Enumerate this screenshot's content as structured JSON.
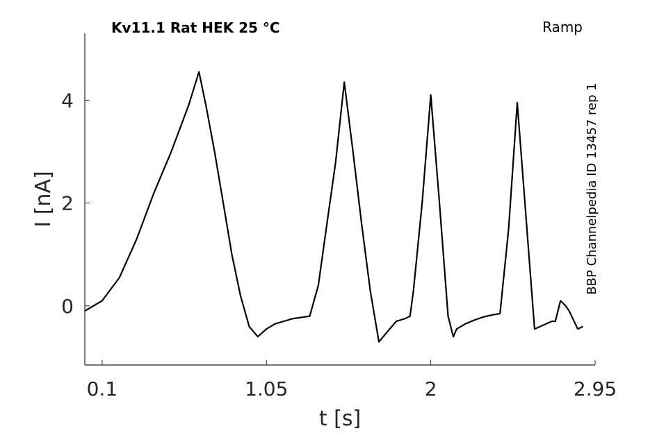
{
  "chart_data": {
    "type": "line",
    "title": "Kv11.1  Rat  HEK  25 °C",
    "protocol_label": "Ramp",
    "source_label": "BBP Channelpedia ID 13457 rep 1",
    "xlabel": "t [s]",
    "ylabel": "I [nA]",
    "xlim": [
      0.0,
      2.95
    ],
    "ylim": [
      -1.15,
      5.3
    ],
    "xticks": [
      0.1,
      1.05,
      2,
      2.95
    ],
    "xtick_labels": [
      "0.1",
      "1.05",
      "2",
      "2.95"
    ],
    "yticks": [
      0,
      2,
      4
    ],
    "ytick_labels": [
      "0",
      "2",
      "4"
    ],
    "grid": false,
    "series": [
      {
        "color": "#000000",
        "x": [
          0.0,
          0.05,
          0.1,
          0.2,
          0.3,
          0.4,
          0.5,
          0.6,
          0.66,
          0.7,
          0.75,
          0.8,
          0.85,
          0.9,
          0.95,
          1.0,
          1.05,
          1.1,
          1.15,
          1.2,
          1.3,
          1.35,
          1.4,
          1.45,
          1.5,
          1.55,
          1.6,
          1.65,
          1.7,
          1.75,
          1.8,
          1.85,
          1.88,
          1.9,
          1.95,
          2.0,
          2.05,
          2.1,
          2.13,
          2.15,
          2.2,
          2.25,
          2.3,
          2.35,
          2.4,
          2.45,
          2.5,
          2.6,
          2.7,
          2.72,
          2.75,
          2.78,
          2.8,
          2.85,
          2.88
        ],
        "y": [
          -0.1,
          0.0,
          0.1,
          0.55,
          1.3,
          2.2,
          3.0,
          3.9,
          4.55,
          3.9,
          3.0,
          2.0,
          1.0,
          0.2,
          -0.4,
          -0.6,
          -0.45,
          -0.35,
          -0.3,
          -0.25,
          -0.2,
          0.4,
          1.6,
          2.8,
          4.35,
          3.0,
          1.6,
          0.3,
          -0.7,
          -0.5,
          -0.3,
          -0.25,
          -0.2,
          0.3,
          2.0,
          4.1,
          2.0,
          -0.2,
          -0.6,
          -0.45,
          -0.35,
          -0.28,
          -0.22,
          -0.18,
          -0.15,
          1.5,
          3.95,
          -0.45,
          -0.3,
          -0.3,
          0.1,
          0.0,
          -0.1,
          -0.45,
          -0.4
        ]
      }
    ]
  }
}
